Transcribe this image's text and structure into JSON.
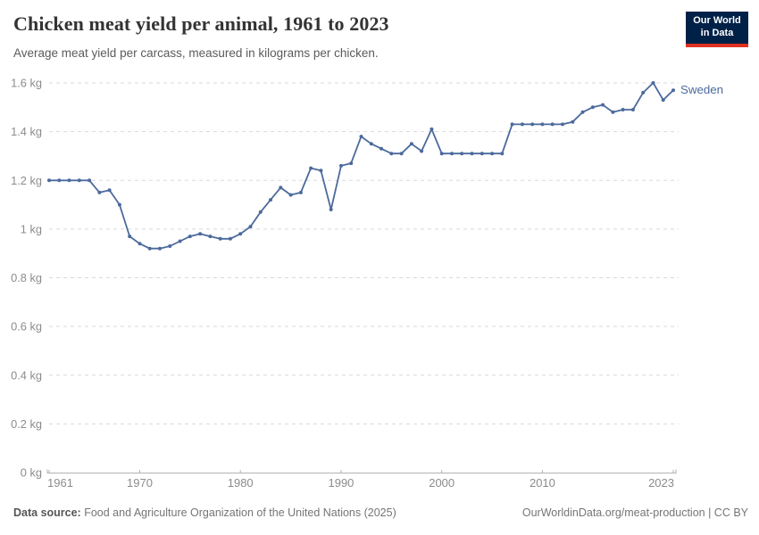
{
  "header": {
    "title": "Chicken meat yield per animal, 1961 to 2023",
    "subtitle": "Average meat yield per carcass, measured in kilograms per chicken.",
    "logo_line1": "Our World",
    "logo_line2": "in Data"
  },
  "chart_data": {
    "type": "line",
    "title": "Chicken meat yield per animal, 1961 to 2023",
    "ylabel": "",
    "xlabel": "",
    "unit": "kg",
    "xlim": [
      1961,
      2023
    ],
    "ylim": [
      0,
      1.6
    ],
    "grid": "horizontal-dashed",
    "legend_position": "end-of-line",
    "x_ticks": [
      1961,
      1970,
      1980,
      1990,
      2000,
      2010,
      2023
    ],
    "y_ticks": [
      {
        "value": 0,
        "label": "0 kg"
      },
      {
        "value": 0.2,
        "label": "0.2 kg"
      },
      {
        "value": 0.4,
        "label": "0.4 kg"
      },
      {
        "value": 0.6,
        "label": "0.6 kg"
      },
      {
        "value": 0.8,
        "label": "0.8 kg"
      },
      {
        "value": 1,
        "label": "1 kg"
      },
      {
        "value": 1.2,
        "label": "1.2 kg"
      },
      {
        "value": 1.4,
        "label": "1.4 kg"
      },
      {
        "value": 1.6,
        "label": "1.6 kg"
      }
    ],
    "series": [
      {
        "name": "Sweden",
        "color": "#4C6A9C",
        "x": [
          1961,
          1962,
          1963,
          1964,
          1965,
          1966,
          1967,
          1968,
          1969,
          1970,
          1971,
          1972,
          1973,
          1974,
          1975,
          1976,
          1977,
          1978,
          1979,
          1980,
          1981,
          1982,
          1983,
          1984,
          1985,
          1986,
          1987,
          1988,
          1989,
          1990,
          1991,
          1992,
          1993,
          1994,
          1995,
          1996,
          1997,
          1998,
          1999,
          2000,
          2001,
          2002,
          2003,
          2004,
          2005,
          2006,
          2007,
          2008,
          2009,
          2010,
          2011,
          2012,
          2013,
          2014,
          2015,
          2016,
          2017,
          2018,
          2019,
          2020,
          2021,
          2022,
          2023
        ],
        "values": [
          1.2,
          1.2,
          1.2,
          1.2,
          1.2,
          1.15,
          1.16,
          1.1,
          0.97,
          0.94,
          0.92,
          0.92,
          0.93,
          0.95,
          0.97,
          0.98,
          0.97,
          0.96,
          0.96,
          0.98,
          1.01,
          1.07,
          1.12,
          1.17,
          1.14,
          1.15,
          1.25,
          1.24,
          1.08,
          1.26,
          1.27,
          1.38,
          1.35,
          1.33,
          1.31,
          1.31,
          1.35,
          1.32,
          1.41,
          1.31,
          1.31,
          1.31,
          1.31,
          1.31,
          1.31,
          1.31,
          1.43,
          1.43,
          1.43,
          1.43,
          1.43,
          1.43,
          1.44,
          1.48,
          1.5,
          1.51,
          1.48,
          1.49,
          1.49,
          1.56,
          1.6,
          1.53,
          1.57
        ]
      }
    ]
  },
  "footer": {
    "datasource_label": "Data source:",
    "datasource_text": "Food and Agriculture Organization of the United Nations (2025)",
    "credit": "OurWorldinData.org/meat-production | CC BY"
  },
  "colors": {
    "line": "#4C6A9C",
    "grid": "#d9d9d9",
    "axis": "#b3b3b3",
    "axis_text": "#8c8c8c",
    "logo_bg": "#002147",
    "logo_red": "#DE3120"
  }
}
